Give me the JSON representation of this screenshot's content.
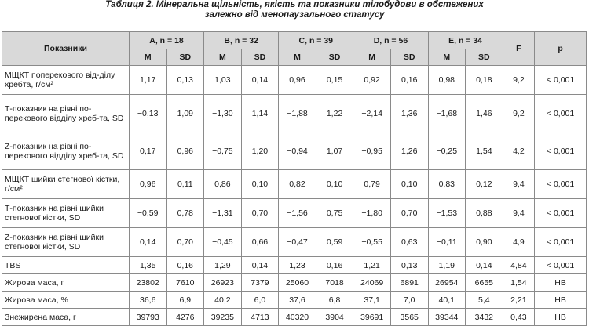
{
  "title_line1": "Таблиця 2. Мінеральна щільність, якість та показники тілобудови в обстежених",
  "title_line2": "залежно від менопаузального статусу",
  "headers": {
    "indicator": "Показники",
    "groups": [
      "A, n = 18",
      "B, n = 32",
      "C, n = 39",
      "D, n = 56",
      "E, n = 34"
    ],
    "m": "M",
    "sd": "SD",
    "f": "F",
    "p": "p"
  },
  "rows": [
    {
      "label": "МЩКТ поперекового від-ділу хребта, г/см²",
      "cells": [
        "1,17",
        "0,13",
        "1,03",
        "0,14",
        "0,96",
        "0,15",
        "0,92",
        "0,16",
        "0,98",
        "0,18",
        "9,2",
        "< 0,001"
      ]
    },
    {
      "label": "Т-показник на рівні по-перекового відділу хреб-та, SD",
      "cells": [
        "−0,13",
        "1,09",
        "−1,30",
        "1,14",
        "−1,88",
        "1,22",
        "−2,14",
        "1,36",
        "−1,68",
        "1,46",
        "9,2",
        "< 0,001"
      ]
    },
    {
      "label": "Z-показник на рівні по-перекового відділу хреб-та, SD",
      "cells": [
        "0,17",
        "0,96",
        "−0,75",
        "1,20",
        "−0,94",
        "1,07",
        "−0,95",
        "1,26",
        "−0,25",
        "1,54",
        "4,2",
        "< 0,001"
      ]
    },
    {
      "label": "МЩКТ шийки стегнової кістки, г/см²",
      "cells": [
        "0,96",
        "0,11",
        "0,86",
        "0,10",
        "0,82",
        "0,10",
        "0,79",
        "0,10",
        "0,83",
        "0,12",
        "9,4",
        "< 0,001"
      ]
    },
    {
      "label": "Т-показник на рівні шийки стегнової кістки, SD",
      "cells": [
        "−0,59",
        "0,78",
        "−1,31",
        "0,70",
        "−1,56",
        "0,75",
        "−1,80",
        "0,70",
        "−1,53",
        "0,88",
        "9,4",
        "< 0,001"
      ]
    },
    {
      "label": "Z-показник на рівні шийки стегнової кістки, SD",
      "cells": [
        "0,14",
        "0,70",
        "−0,45",
        "0,66",
        "−0,47",
        "0,59",
        "−0,55",
        "0,63",
        "−0,11",
        "0,90",
        "4,9",
        "< 0,001"
      ]
    },
    {
      "label": "TBS",
      "cells": [
        "1,35",
        "0,16",
        "1,29",
        "0,14",
        "1,23",
        "0,16",
        "1,21",
        "0,13",
        "1,19",
        "0,14",
        "4,84",
        "< 0,001"
      ]
    },
    {
      "label": "Жирова маса, г",
      "cells": [
        "23802",
        "7610",
        "26923",
        "7379",
        "25060",
        "7018",
        "24069",
        "6891",
        "26954",
        "6655",
        "1,54",
        "НВ"
      ]
    },
    {
      "label": "Жирова маса, %",
      "cells": [
        "36,6",
        "6,9",
        "40,2",
        "6,0",
        "37,6",
        "6,8",
        "37,1",
        "7,0",
        "40,1",
        "5,4",
        "2,21",
        "НВ"
      ]
    },
    {
      "label": "Знежирена маса, г",
      "cells": [
        "39793",
        "4276",
        "39235",
        "4713",
        "40320",
        "3904",
        "39691",
        "3565",
        "39344",
        "3432",
        "0,43",
        "НВ"
      ]
    }
  ]
}
